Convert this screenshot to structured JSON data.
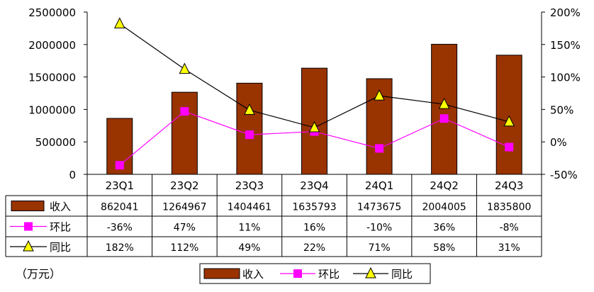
{
  "unit_note": "（万元）",
  "chart_data": {
    "type": "bar",
    "categories": [
      "23Q1",
      "23Q2",
      "23Q3",
      "23Q4",
      "24Q1",
      "24Q2",
      "24Q3"
    ],
    "left_axis": {
      "ticks": [
        "0",
        "500000",
        "1000000",
        "1500000",
        "2000000",
        "2500000"
      ],
      "range": [
        0,
        2500000
      ]
    },
    "right_axis": {
      "ticks": [
        "-50%",
        "0%",
        "50%",
        "100%",
        "150%",
        "200%"
      ],
      "range": [
        -50,
        200
      ]
    },
    "grid": false,
    "legend_position": "bottom-center",
    "series": [
      {
        "name": "收入",
        "type": "bar",
        "axis": "left",
        "color": "#993300",
        "values": [
          862041,
          1264967,
          1404461,
          1635793,
          1473675,
          2004005,
          1835800
        ],
        "labels": [
          "862041",
          "1264967",
          "1404461",
          "1635793",
          "1473675",
          "2004005",
          "1835800"
        ]
      },
      {
        "name": "环比",
        "type": "line",
        "axis": "right",
        "color": "#ff00ff",
        "marker": "square",
        "values": [
          -36,
          47,
          11,
          16,
          -10,
          36,
          -8
        ],
        "labels": [
          "-36%",
          "47%",
          "11%",
          "16%",
          "-10%",
          "36%",
          "-8%"
        ]
      },
      {
        "name": "同比",
        "type": "line",
        "axis": "right",
        "color": "#000000",
        "marker": "triangle",
        "marker_color": "#ffff00",
        "values": [
          182,
          112,
          49,
          22,
          71,
          58,
          31
        ],
        "labels": [
          "182%",
          "112%",
          "49%",
          "22%",
          "71%",
          "58%",
          "31%"
        ]
      }
    ]
  }
}
